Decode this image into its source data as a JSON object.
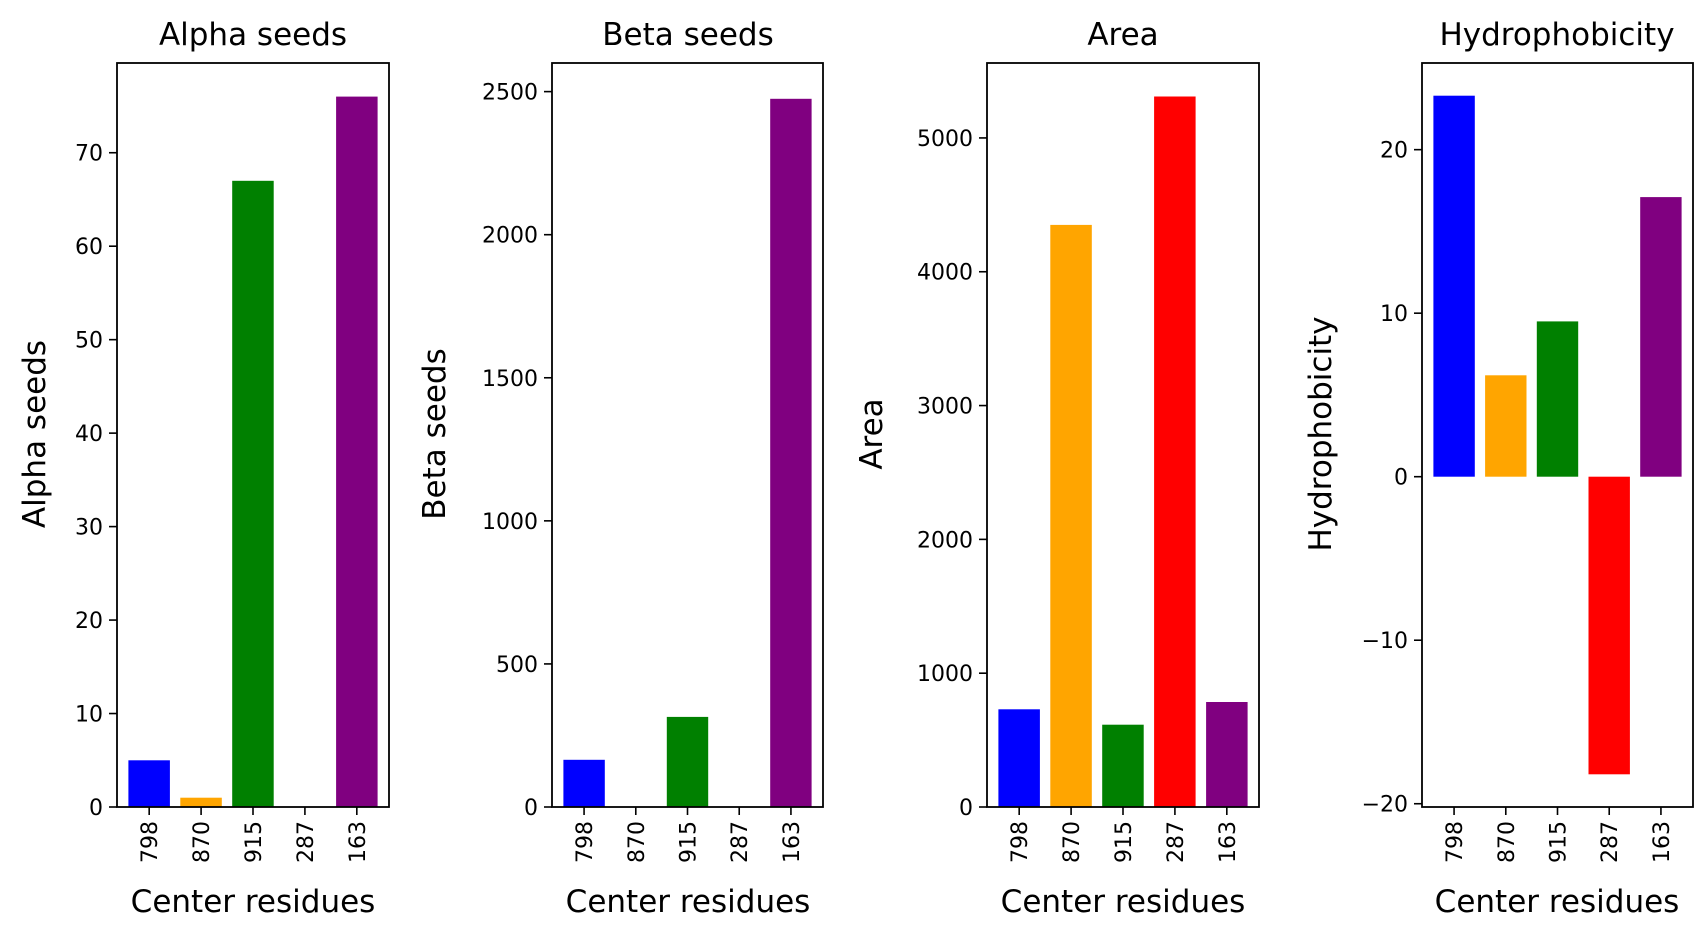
{
  "chart_data": [
    {
      "type": "bar",
      "title": "Alpha seeds",
      "xlabel": "Center residues",
      "ylabel": "Alpha seeds",
      "categories": [
        "798",
        "870",
        "915",
        "287",
        "163"
      ],
      "values": [
        5,
        1,
        67,
        0,
        76
      ],
      "colors": [
        "#0000ff",
        "#ffa500",
        "#008000",
        "#ff0000",
        "#800080"
      ],
      "ylim": [
        0,
        79.6
      ],
      "yticks": [
        0,
        10,
        20,
        30,
        40,
        50,
        60,
        70
      ],
      "ytick_labels": [
        "0",
        "10",
        "20",
        "30",
        "40",
        "50",
        "60",
        "70"
      ]
    },
    {
      "type": "bar",
      "title": "Beta seeds",
      "xlabel": "Center residues",
      "ylabel": "Beta seeds",
      "categories": [
        "798",
        "870",
        "915",
        "287",
        "163"
      ],
      "values": [
        165,
        0,
        315,
        0,
        2475
      ],
      "colors": [
        "#0000ff",
        "#ffa500",
        "#008000",
        "#ff0000",
        "#800080"
      ],
      "ylim": [
        0,
        2600
      ],
      "yticks": [
        0,
        500,
        1000,
        1500,
        2000,
        2500
      ],
      "ytick_labels": [
        "0",
        "500",
        "1000",
        "1500",
        "2000",
        "2500"
      ]
    },
    {
      "type": "bar",
      "title": "Area",
      "xlabel": "Center residues",
      "ylabel": "Area",
      "categories": [
        "798",
        "870",
        "915",
        "287",
        "163"
      ],
      "values": [
        730,
        4350,
        615,
        5310,
        785
      ],
      "colors": [
        "#0000ff",
        "#ffa500",
        "#008000",
        "#ff0000",
        "#800080"
      ],
      "ylim": [
        0,
        5560
      ],
      "yticks": [
        0,
        1000,
        2000,
        3000,
        4000,
        5000
      ],
      "ytick_labels": [
        "0",
        "1000",
        "2000",
        "3000",
        "4000",
        "5000"
      ]
    },
    {
      "type": "bar",
      "title": "Hydrophobicity",
      "xlabel": "Center residues",
      "ylabel": "Hydrophobicity",
      "categories": [
        "798",
        "870",
        "915",
        "287",
        "163"
      ],
      "values": [
        23.3,
        6.2,
        9.5,
        -18.2,
        17.1
      ],
      "colors": [
        "#0000ff",
        "#ffa500",
        "#008000",
        "#ff0000",
        "#800080"
      ],
      "ylim": [
        -20.2,
        25.3
      ],
      "yticks": [
        -20,
        -10,
        0,
        10,
        20
      ],
      "ytick_labels": [
        "−20",
        "−10",
        "0",
        "10",
        "20"
      ]
    }
  ]
}
